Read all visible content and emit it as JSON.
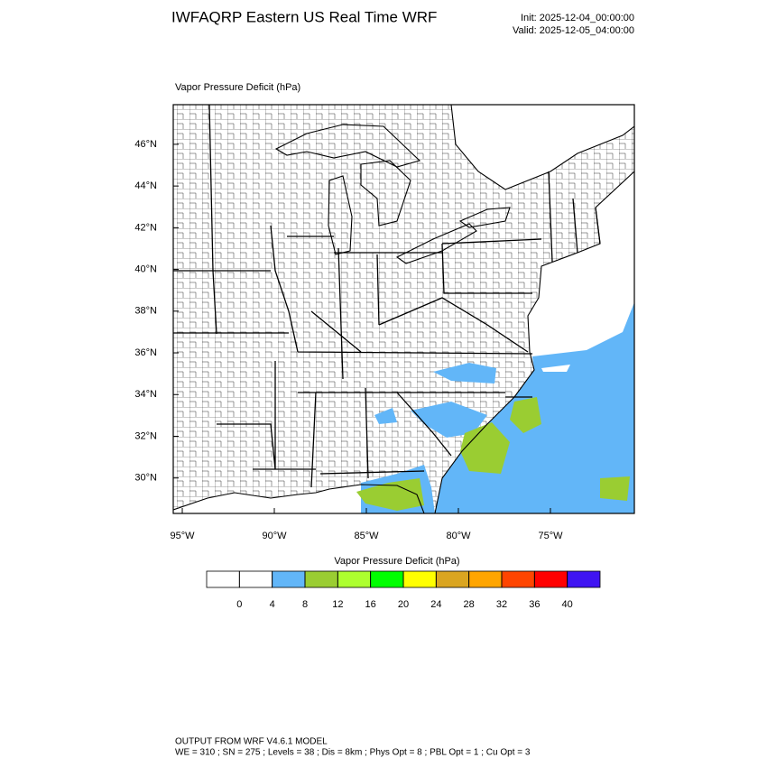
{
  "header": {
    "title": "IWFAQRP Eastern US Real Time WRF",
    "init": "Init: 2025-12-04_00:00:00",
    "valid": "Valid: 2025-12-05_04:00:00"
  },
  "chart_data": {
    "type": "map",
    "title": "Vapor Pressure Deficit   (hPa)",
    "xlim": [
      -95.49,
      -70.44
    ],
    "ylim": [
      28.3,
      47.9
    ],
    "xticks": [
      {
        "value": -95,
        "label": "95°W"
      },
      {
        "value": -90,
        "label": "90°W"
      },
      {
        "value": -85,
        "label": "85°W"
      },
      {
        "value": -80,
        "label": "80°W"
      },
      {
        "value": -75,
        "label": "75°W"
      }
    ],
    "yticks": [
      {
        "value": 30,
        "label": "30°N"
      },
      {
        "value": 32,
        "label": "32°N"
      },
      {
        "value": 34,
        "label": "34°N"
      },
      {
        "value": 36,
        "label": "36°N"
      },
      {
        "value": 38,
        "label": "38°N"
      },
      {
        "value": 40,
        "label": "40°N"
      },
      {
        "value": 42,
        "label": "42°N"
      },
      {
        "value": 44,
        "label": "44°N"
      },
      {
        "value": 46,
        "label": "46°N"
      }
    ],
    "colorbar": {
      "title": "Vapor Pressure Deficit  (hPa)",
      "levels": [
        0,
        4,
        8,
        12,
        16,
        20,
        24,
        28,
        32,
        36,
        40
      ],
      "colors": [
        "#ffffff",
        "#ffffff",
        "#62b6f8",
        "#9acd32",
        "#adff2f",
        "#00ff00",
        "#ffff00",
        "#daa520",
        "#ffa500",
        "#ff4500",
        "#ff0000",
        "#3f14f2"
      ]
    }
  },
  "footer": {
    "line1": "OUTPUT FROM WRF V4.6.1 MODEL",
    "line2": "WE = 310 ; SN = 275 ; Levels = 38 ; Dis = 8km ; Phys Opt = 8 ; PBL Opt = 1 ; Cu Opt = 3"
  }
}
